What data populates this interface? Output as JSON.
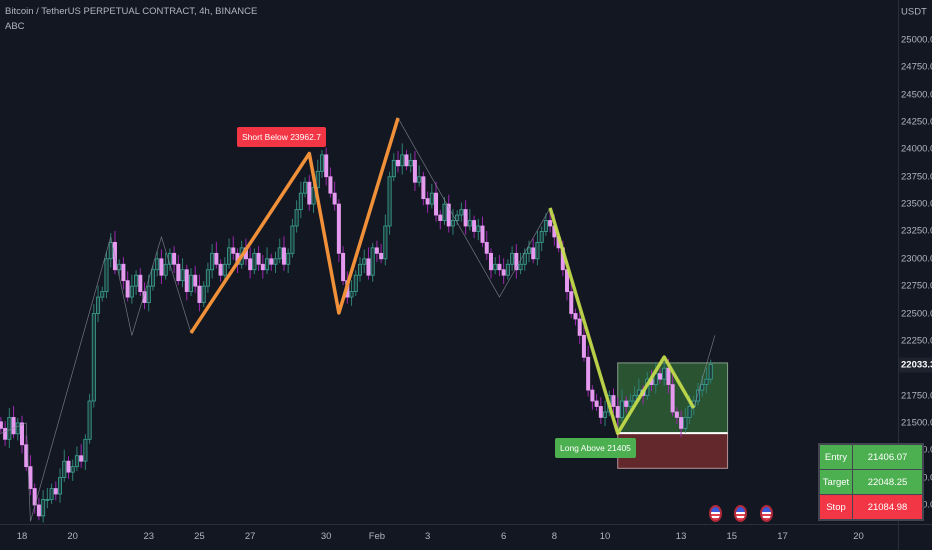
{
  "header": {
    "title": "Bitcoin / TetherUS PERPETUAL CONTRACT, 4h, BINANCE",
    "indicator": "ABC"
  },
  "price_axis": {
    "unit": "USDT",
    "last_price_label": "22033.3"
  },
  "colors": {
    "background": "#131722",
    "up": "#3aa394",
    "down": "#e59af0",
    "down_wick": "#9c27b0",
    "zigzag_orange": "#f0913a",
    "zigzag_yellow": "#c8e04a",
    "short_label": "#f23645",
    "long_label": "#4caf50",
    "target_zone": "#2e5e34",
    "stop_zone": "#6b2a2e"
  },
  "chart_data": {
    "type": "candlestick",
    "title": "Bitcoin / TetherUS PERPETUAL CONTRACT, 4h, BINANCE",
    "interval": "4h",
    "first_candle": "Jan 17 04:00",
    "ylim": [
      20600,
      25200
    ],
    "y_ticks": [
      "25000.0",
      "24750.0",
      "24500.0",
      "24250.0",
      "24000.0",
      "23750.0",
      "23500.0",
      "23250.0",
      "23000.0",
      "22750.0",
      "22500.0",
      "22250.0",
      "21750.0",
      "21500.0",
      "21250.0",
      "21000.0",
      "20750.0"
    ],
    "x_ticks": [
      {
        "label": "18",
        "date": "Jan 18"
      },
      {
        "label": "20",
        "date": "Jan 20"
      },
      {
        "label": "23",
        "date": "Jan 23"
      },
      {
        "label": "25",
        "date": "Jan 25"
      },
      {
        "label": "27",
        "date": "Jan 27"
      },
      {
        "label": "30",
        "date": "Jan 30"
      },
      {
        "label": "Feb",
        "date": "Feb 1"
      },
      {
        "label": "3",
        "date": "Feb 3"
      },
      {
        "label": "6",
        "date": "Feb 6"
      },
      {
        "label": "8",
        "date": "Feb 8"
      },
      {
        "label": "10",
        "date": "Feb 10"
      },
      {
        "label": "13",
        "date": "Feb 13"
      },
      {
        "label": "15",
        "date": "Feb 15"
      },
      {
        "label": "17",
        "date": "Feb 17"
      },
      {
        "label": "20",
        "date": "Feb 20"
      }
    ],
    "closes": [
      21450,
      21350,
      21550,
      21400,
      21500,
      21300,
      21100,
      20900,
      20750,
      20650,
      20800,
      20800,
      20900,
      20850,
      21000,
      21150,
      21050,
      21100,
      21200,
      21150,
      21350,
      21700,
      22500,
      22650,
      22700,
      23000,
      23150,
      22900,
      22950,
      22800,
      22650,
      22750,
      22850,
      22700,
      22600,
      22750,
      22900,
      23000,
      22850,
      22950,
      23050,
      22950,
      22800,
      22900,
      22700,
      22850,
      22750,
      22600,
      22750,
      22900,
      23050,
      22950,
      22850,
      22950,
      23100,
      23050,
      22950,
      23100,
      23000,
      22900,
      23050,
      22950,
      22900,
      23000,
      22950,
      23000,
      23100,
      22950,
      23050,
      23300,
      23450,
      23600,
      23700,
      23500,
      23650,
      23800,
      23950,
      23750,
      23600,
      23500,
      23050,
      22800,
      22650,
      22700,
      22850,
      22950,
      23000,
      22850,
      23100,
      23050,
      23000,
      23300,
      23750,
      23900,
      23850,
      23950,
      23850,
      23900,
      23700,
      23750,
      23550,
      23500,
      23600,
      23400,
      23350,
      23500,
      23300,
      23350,
      23400,
      23450,
      23300,
      23350,
      23250,
      23300,
      23150,
      23050,
      22900,
      22950,
      22900,
      22850,
      22950,
      23050,
      22900,
      22950,
      23050,
      23100,
      23000,
      23150,
      23250,
      23350,
      23300,
      23200,
      23100,
      22900,
      22700,
      22500,
      22450,
      22300,
      22100,
      21800,
      21700,
      21650,
      21550,
      21600,
      21750,
      21650,
      21550,
      21700,
      21650,
      21700,
      21750,
      21800,
      21750,
      21900,
      21850,
      21950,
      21900,
      22000,
      21850,
      21600,
      21550,
      21450,
      21550,
      21650,
      21700,
      21800,
      21850,
      21900,
      22033.3
    ],
    "abc_pivots": [
      {
        "t": "Jan 17 03:00",
        "p": 21400
      },
      {
        "t": "Jan 18 04:00",
        "p": 21500
      },
      {
        "t": "Jan 18 08:00",
        "p": 20600
      },
      {
        "t": "Jan 21 12:00",
        "p": 23200
      },
      {
        "t": "Jan 22 08:00",
        "p": 22300
      },
      {
        "t": "Jan 23 12:00",
        "p": 23200
      },
      {
        "t": "Jan 24 16:00",
        "p": 22322
      },
      {
        "t": "Jan 29 08:00",
        "p": 23962.7
      },
      {
        "t": "Jan 30 12:00",
        "p": 22505
      },
      {
        "t": "Feb 1 20:00",
        "p": 24287
      },
      {
        "t": "Feb 5 20:00",
        "p": 22650
      },
      {
        "t": "Feb 7 20:00",
        "p": 23464
      },
      {
        "t": "Feb 10 12:00",
        "p": 21405
      },
      {
        "t": "Feb 12 08:00",
        "p": 22102
      },
      {
        "t": "Feb 13 12:00",
        "p": 21636
      },
      {
        "t": "Feb 14 08:00",
        "p": 22300
      }
    ],
    "abc_orange": [
      {
        "t": "Jan 24 16:00",
        "p": 22322
      },
      {
        "t": "Jan 29 08:00",
        "p": 23962.7
      },
      {
        "t": "Jan 30 12:00",
        "p": 22505
      },
      {
        "t": "Feb 1 20:00",
        "p": 24287
      }
    ],
    "abc_yellow": [
      {
        "t": "Feb 7 20:00",
        "p": 23464
      },
      {
        "t": "Feb 10 12:00",
        "p": 21405
      },
      {
        "t": "Feb 12 08:00",
        "p": 22102
      },
      {
        "t": "Feb 13 12:00",
        "p": 21636
      }
    ],
    "trade_box": {
      "start": "Feb 10 12:00",
      "end": "Feb 14 20:00",
      "entry": 21406.07,
      "target": 22048.25,
      "stop": 21084.98
    },
    "event_flags": [
      "Feb 14 08:00",
      "Feb 15 08:00",
      "Feb 16 08:00"
    ]
  },
  "labels": {
    "short": "Short Below 23962.7",
    "long": "Long Above 21405"
  },
  "table": {
    "entry_label": "Entry",
    "entry_value": "21406.07",
    "target_label": "Target",
    "target_value": "22048.25",
    "stop_label": "Stop",
    "stop_value": "21084.98"
  }
}
